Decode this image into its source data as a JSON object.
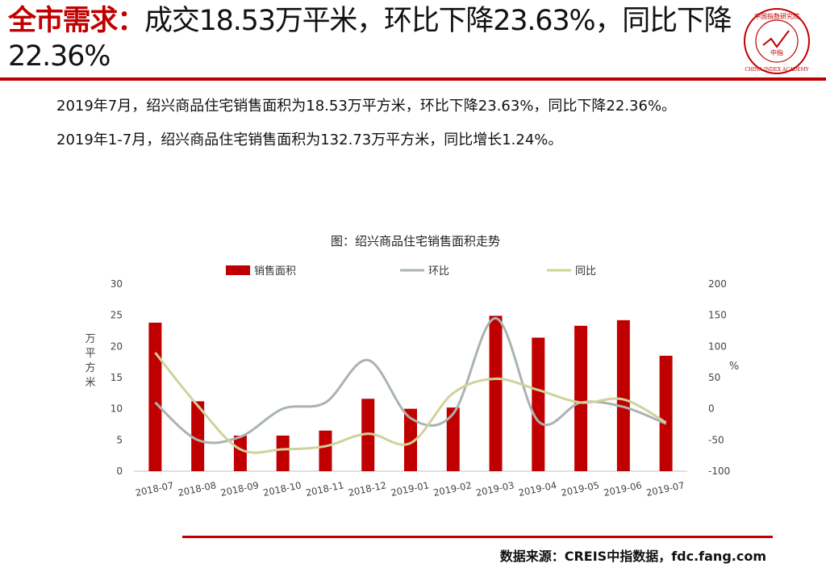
{
  "slide": {
    "title_lead": "全市需求：",
    "title_rest": "成交18.53万平米，环比下降23.63%，同比下降22.36%",
    "paragraph1": "2019年7月，绍兴商品住宅销售面积为18.53万平方米，环比下降23.63%，同比下降22.36%。",
    "paragraph2": "2019年1-7月，绍兴商品住宅销售面积为132.73万平方米，同比增长1.24%。",
    "source": "数据来源：CREIS中指数据，fdc.fang.com",
    "logo_text": "中国指数研究院",
    "logo_center": "中指",
    "logo_ring": "CHINA INDEX ACADEMY"
  },
  "colors": {
    "accent": "#c00000",
    "bar": "#c00000",
    "mom_line": "#a9b4b1",
    "yoy_line": "#d1d19b"
  },
  "chart_data": {
    "type": "bar",
    "title": "图：绍兴商品住宅销售面积走势",
    "categories": [
      "2018-07",
      "2018-08",
      "2018-09",
      "2018-10",
      "2018-11",
      "2018-12",
      "2019-01",
      "2019-02",
      "2019-03",
      "2019-04",
      "2019-05",
      "2019-06",
      "2019-07"
    ],
    "ylabel": "万平方米",
    "y2label": "%",
    "ylim": [
      0,
      30
    ],
    "yticks": [
      0,
      5,
      10,
      15,
      20,
      25,
      30
    ],
    "y2lim": [
      -100,
      200
    ],
    "y2ticks": [
      -100,
      -50,
      0,
      50,
      100,
      150,
      200
    ],
    "grid": false,
    "legend_position": "top",
    "series": [
      {
        "name": "销售面积",
        "kind": "bar",
        "axis": "left",
        "values": [
          23.8,
          11.2,
          5.7,
          5.7,
          6.5,
          11.6,
          10.0,
          10.2,
          24.9,
          21.4,
          23.3,
          24.2,
          18.5
        ]
      },
      {
        "name": "环比",
        "kind": "line",
        "axis": "right",
        "values": [
          10,
          -50,
          -45,
          0,
          10,
          78,
          -15,
          -8,
          145,
          -20,
          10,
          3,
          -24
        ]
      },
      {
        "name": "同比",
        "kind": "line",
        "axis": "right",
        "values": [
          90,
          5,
          -65,
          -65,
          -60,
          -40,
          -55,
          25,
          48,
          30,
          10,
          15,
          -22
        ]
      }
    ]
  }
}
